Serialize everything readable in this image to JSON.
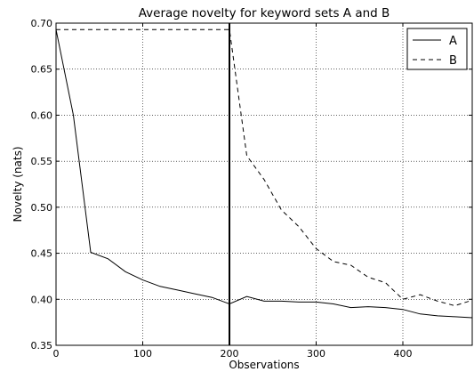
{
  "chart_data": {
    "type": "line",
    "title": "Average novelty for keyword sets A and B",
    "xlabel": "Observations",
    "ylabel": "Novelty (nats)",
    "xlim": [
      0,
      480
    ],
    "ylim": [
      0.35,
      0.7
    ],
    "xticks": [
      0,
      100,
      200,
      300,
      400
    ],
    "yticks": [
      0.35,
      0.4,
      0.45,
      0.5,
      0.55,
      0.6,
      0.65,
      0.7
    ],
    "xtick_labels": [
      "0",
      "100",
      "200",
      "300",
      "400"
    ],
    "ytick_labels": [
      "0.35",
      "0.40",
      "0.45",
      "0.50",
      "0.55",
      "0.60",
      "0.65",
      "0.70"
    ],
    "grid": true,
    "legend_position": "top-right",
    "vertical_line": 200,
    "series": [
      {
        "name": "A",
        "style": "solid",
        "color": "#000000",
        "x": [
          0,
          20,
          40,
          60,
          80,
          100,
          120,
          140,
          160,
          180,
          200,
          220,
          240,
          260,
          280,
          300,
          320,
          340,
          360,
          380,
          400,
          420,
          440,
          460,
          480
        ],
        "y": [
          0.693,
          0.6,
          0.451,
          0.444,
          0.43,
          0.421,
          0.414,
          0.41,
          0.406,
          0.402,
          0.395,
          0.403,
          0.398,
          0.398,
          0.397,
          0.397,
          0.395,
          0.391,
          0.392,
          0.391,
          0.389,
          0.384,
          0.382,
          0.381,
          0.38
        ]
      },
      {
        "name": "B",
        "style": "dashed",
        "color": "#000000",
        "x": [
          0,
          200,
          220,
          240,
          260,
          280,
          300,
          320,
          340,
          360,
          380,
          400,
          420,
          440,
          460,
          480
        ],
        "y": [
          0.693,
          0.693,
          0.556,
          0.53,
          0.497,
          0.479,
          0.455,
          0.441,
          0.437,
          0.424,
          0.418,
          0.4,
          0.405,
          0.398,
          0.393,
          0.399
        ]
      }
    ]
  }
}
